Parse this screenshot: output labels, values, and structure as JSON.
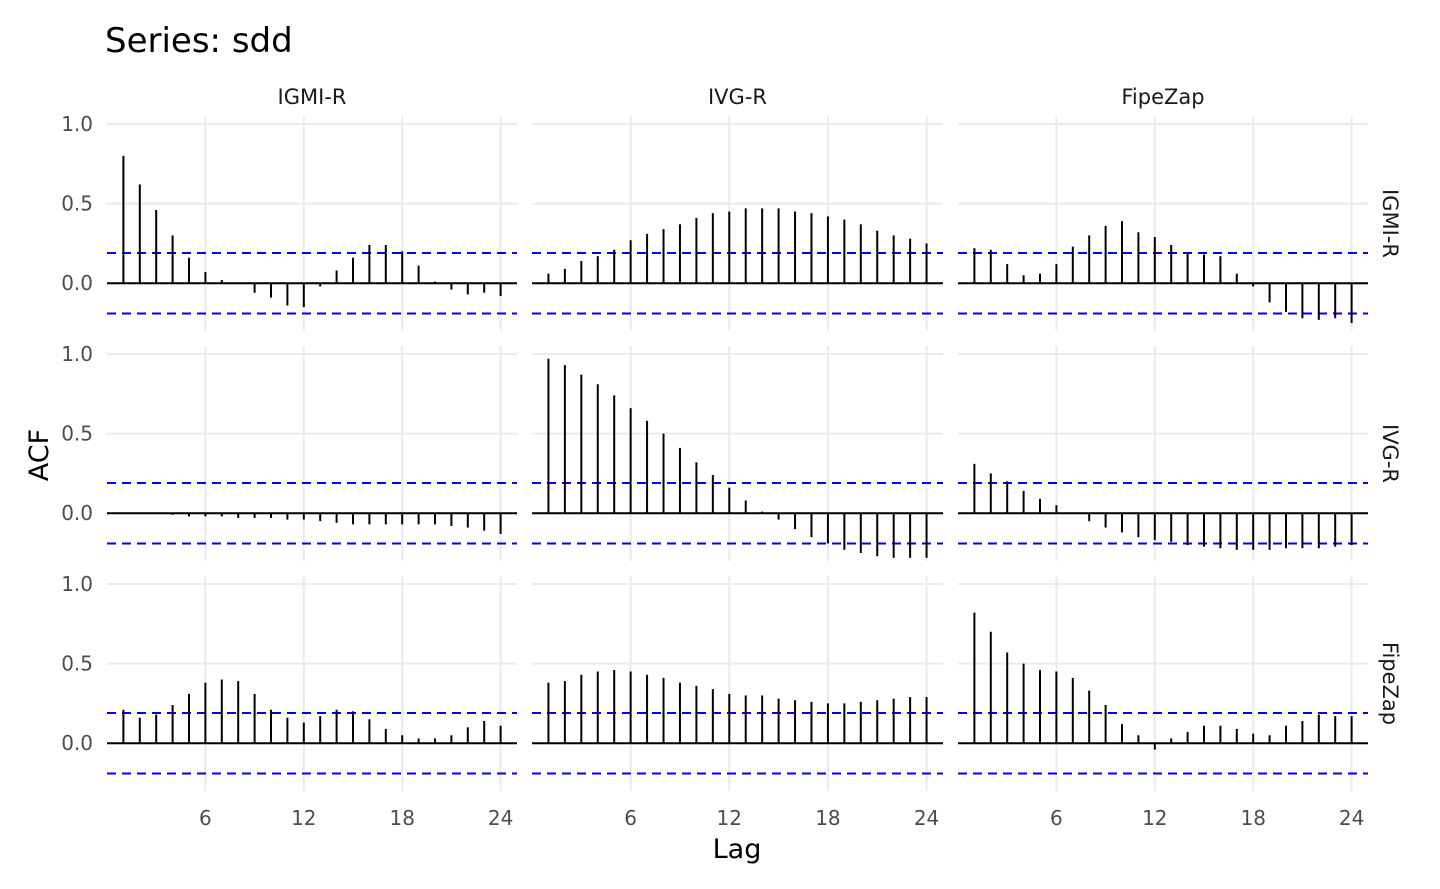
{
  "chart_data": {
    "type": "acf-matrix",
    "title": "Series: sdd",
    "xlabel": "Lag",
    "ylabel": "ACF",
    "columns": [
      "IGMI-R",
      "IVG-R",
      "FipeZap"
    ],
    "rows": [
      "IGMI-R",
      "IVG-R",
      "FipeZap"
    ],
    "x_ticks": [
      6,
      12,
      18,
      24
    ],
    "y_ticks": [
      0.0,
      0.5,
      1.0
    ],
    "y_tick_labels": [
      "0.0",
      "0.5",
      "1.0"
    ],
    "xlim": [
      0,
      25
    ],
    "ylim": [
      -0.3,
      1.05
    ],
    "confidence_bound": 0.19,
    "colors": {
      "bound": "#0000ee",
      "bar": "#000000",
      "grid": "#ebebeb"
    },
    "lags": [
      1,
      2,
      3,
      4,
      5,
      6,
      7,
      8,
      9,
      10,
      11,
      12,
      13,
      14,
      15,
      16,
      17,
      18,
      19,
      20,
      21,
      22,
      23,
      24
    ],
    "panels": [
      [
        [
          0.8,
          0.62,
          0.46,
          0.3,
          0.16,
          0.07,
          0.02,
          0.0,
          -0.06,
          -0.09,
          -0.14,
          -0.15,
          -0.02,
          0.08,
          0.16,
          0.24,
          0.24,
          0.2,
          0.11,
          0.01,
          -0.04,
          -0.07,
          -0.06,
          -0.08
        ],
        [
          0.06,
          0.09,
          0.14,
          0.17,
          0.21,
          0.27,
          0.31,
          0.34,
          0.37,
          0.41,
          0.44,
          0.45,
          0.47,
          0.47,
          0.47,
          0.45,
          0.44,
          0.42,
          0.4,
          0.37,
          0.33,
          0.3,
          0.28,
          0.25
        ],
        [
          0.22,
          0.21,
          0.12,
          0.05,
          0.06,
          0.12,
          0.23,
          0.3,
          0.36,
          0.39,
          0.32,
          0.29,
          0.24,
          0.19,
          0.18,
          0.17,
          0.06,
          -0.02,
          -0.12,
          -0.18,
          -0.22,
          -0.23,
          -0.22,
          -0.25
        ]
      ],
      [
        [
          0.0,
          0.0,
          0.0,
          -0.01,
          -0.02,
          -0.02,
          -0.02,
          -0.03,
          -0.03,
          -0.03,
          -0.04,
          -0.04,
          -0.05,
          -0.06,
          -0.07,
          -0.07,
          -0.07,
          -0.07,
          -0.07,
          -0.07,
          -0.08,
          -0.09,
          -0.11,
          -0.13
        ],
        [
          0.97,
          0.93,
          0.87,
          0.81,
          0.74,
          0.66,
          0.58,
          0.5,
          0.41,
          0.32,
          0.24,
          0.16,
          0.08,
          0.01,
          -0.04,
          -0.1,
          -0.15,
          -0.19,
          -0.23,
          -0.25,
          -0.27,
          -0.28,
          -0.28,
          -0.28
        ],
        [
          0.31,
          0.25,
          0.2,
          0.14,
          0.09,
          0.05,
          0.0,
          -0.05,
          -0.09,
          -0.12,
          -0.15,
          -0.17,
          -0.18,
          -0.2,
          -0.21,
          -0.22,
          -0.23,
          -0.23,
          -0.23,
          -0.22,
          -0.22,
          -0.22,
          -0.21,
          -0.2
        ]
      ],
      [
        [
          0.21,
          0.16,
          0.18,
          0.24,
          0.31,
          0.38,
          0.4,
          0.39,
          0.31,
          0.21,
          0.16,
          0.13,
          0.17,
          0.21,
          0.2,
          0.15,
          0.09,
          0.05,
          0.03,
          0.03,
          0.05,
          0.1,
          0.14,
          0.11
        ],
        [
          0.38,
          0.39,
          0.43,
          0.45,
          0.46,
          0.45,
          0.43,
          0.41,
          0.38,
          0.36,
          0.34,
          0.31,
          0.3,
          0.3,
          0.28,
          0.27,
          0.26,
          0.25,
          0.25,
          0.26,
          0.27,
          0.28,
          0.29,
          0.29
        ],
        [
          0.82,
          0.7,
          0.57,
          0.5,
          0.46,
          0.45,
          0.41,
          0.33,
          0.24,
          0.12,
          0.05,
          -0.04,
          0.03,
          0.07,
          0.11,
          0.11,
          0.09,
          0.06,
          0.05,
          0.11,
          0.14,
          0.18,
          0.17,
          0.17
        ]
      ]
    ]
  }
}
